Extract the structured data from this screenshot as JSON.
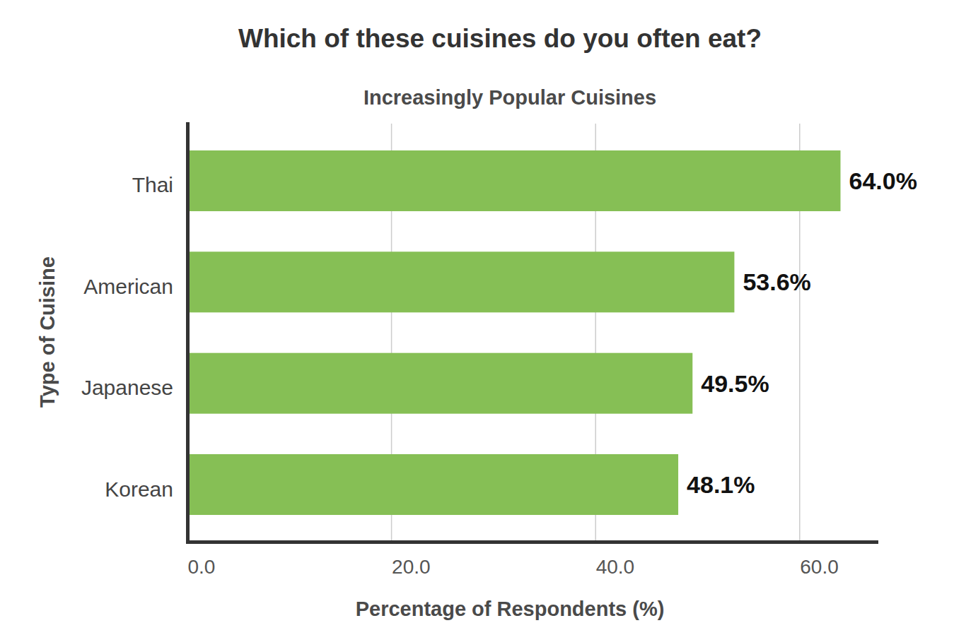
{
  "chart_data": {
    "type": "bar",
    "orientation": "horizontal",
    "title": "Which of these cuisines do you often eat?",
    "subtitle": "Increasingly Popular Cuisines",
    "x_label": "Percentage of Respondents (%)",
    "y_label": "Type of Cuisine",
    "categories": [
      "Thai",
      "American",
      "Japanese",
      "Korean"
    ],
    "values": [
      64.0,
      53.6,
      49.5,
      48.1
    ],
    "value_labels": [
      "64.0%",
      "53.6%",
      "49.5%",
      "48.1%"
    ],
    "data_labels": true,
    "color": "#86bf55",
    "xlim": [
      0,
      67.5
    ],
    "xticks": [
      {
        "value": 0,
        "label": "0.0"
      },
      {
        "value": 20,
        "label": "20.0"
      },
      {
        "value": 40,
        "label": "40.0"
      },
      {
        "value": 60,
        "label": "60.0"
      }
    ],
    "grid": true
  }
}
